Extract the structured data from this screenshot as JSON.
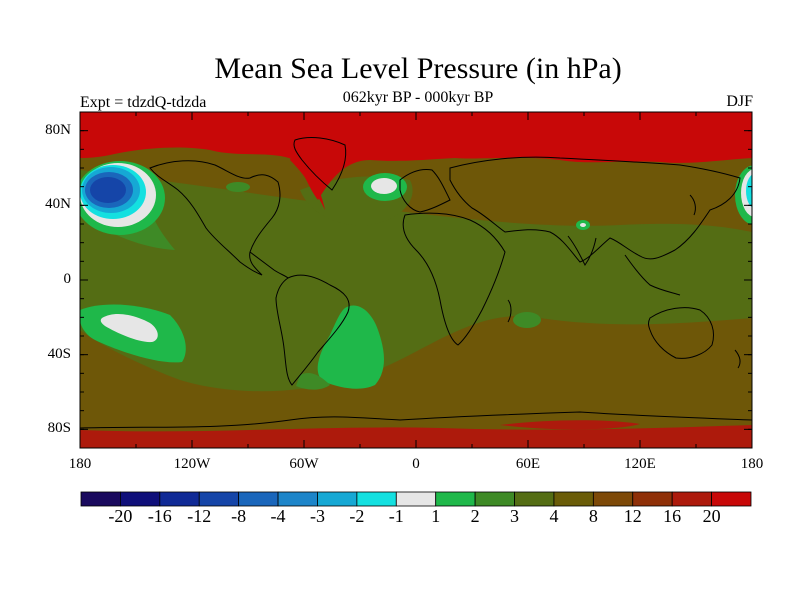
{
  "title": "Mean Sea Level Pressure (in hPa)",
  "subtitle": "062kyr BP - 000kyr BP",
  "left_label": "Expt = tdzdQ-tdzda",
  "right_label": "DJF",
  "map": {
    "projection": "cylindrical-equidistant",
    "lon_range": [
      -180,
      180
    ],
    "lat_range": [
      -90,
      90
    ],
    "y_ticks": [
      {
        "value": 80,
        "label": "80N"
      },
      {
        "value": 40,
        "label": "40N"
      },
      {
        "value": 0,
        "label": "0"
      },
      {
        "value": -40,
        "label": "40S"
      },
      {
        "value": -80,
        "label": "80S"
      }
    ],
    "x_ticks": [
      {
        "value": -180,
        "label": "180"
      },
      {
        "value": -120,
        "label": "120W"
      },
      {
        "value": -60,
        "label": "60W"
      },
      {
        "value": 0,
        "label": "0"
      },
      {
        "value": 60,
        "label": "60E"
      },
      {
        "value": 120,
        "label": "120E"
      },
      {
        "value": 180,
        "label": "180"
      }
    ]
  },
  "colorbar": {
    "colors": [
      "#1a0a5e",
      "#0f0f7a",
      "#102a96",
      "#1545a8",
      "#1a66bb",
      "#1d85c9",
      "#16a8d4",
      "#14e0e0",
      "#e6e6e6",
      "#1fb84a",
      "#3e8a26",
      "#546d14",
      "#6a5c08",
      "#7d4908",
      "#8f3008",
      "#ad1a0c",
      "#c80808"
    ],
    "labels": [
      "-20",
      "-16",
      "-12",
      "-8",
      "-4",
      "-3",
      "-2",
      "-1",
      "1",
      "2",
      "3",
      "4",
      "8",
      "12",
      "16",
      "20"
    ]
  },
  "palette": {
    "red": "#c80808",
    "dark_red": "#a8180a",
    "brown": "#6e5708",
    "olive": "#546d14",
    "green": "#3e8a26",
    "bright_green": "#1fb84a",
    "white": "#e6e6e6",
    "cyan": "#14e0e0",
    "light_blue": "#16a8d4",
    "blue": "#1a66bb",
    "coast": "#000000"
  }
}
